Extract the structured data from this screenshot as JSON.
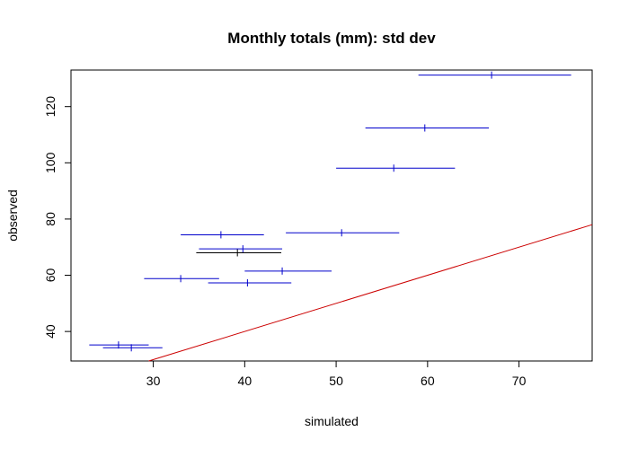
{
  "chart_data": {
    "type": "scatter",
    "title": "Monthly totals (mm): std dev",
    "xlabel": "simulated",
    "ylabel": "observed",
    "xlim": [
      21,
      78
    ],
    "ylim": [
      29.5,
      133
    ],
    "x_ticks": [
      30,
      40,
      50,
      60,
      70
    ],
    "y_ticks": [
      40,
      60,
      80,
      100,
      120
    ],
    "grid": false,
    "reference_line": {
      "slope": 1,
      "intercept": 0,
      "color": "#cc0000"
    },
    "series": [
      {
        "points": [
          {
            "x": 27.6,
            "y": 34.2,
            "xmin": 24.5,
            "xmax": 31.0
          },
          {
            "x": 26.2,
            "y": 35.2,
            "xmin": 23.0,
            "xmax": 29.5
          },
          {
            "x": 33.0,
            "y": 58.8,
            "xmin": 29.0,
            "xmax": 37.2
          },
          {
            "x": 40.3,
            "y": 57.3,
            "xmin": 36.0,
            "xmax": 45.1
          },
          {
            "x": 44.1,
            "y": 61.5,
            "xmin": 40.0,
            "xmax": 49.5
          },
          {
            "x": 39.2,
            "y": 68.0,
            "xmin": 34.7,
            "xmax": 44.0
          },
          {
            "x": 39.8,
            "y": 69.4,
            "xmin": 35.0,
            "xmax": 44.1
          },
          {
            "x": 37.4,
            "y": 74.4,
            "xmin": 33.0,
            "xmax": 42.1
          },
          {
            "x": 50.6,
            "y": 75.1,
            "xmin": 44.5,
            "xmax": 56.9
          },
          {
            "x": 56.3,
            "y": 98.1,
            "xmin": 50.0,
            "xmax": 63.0
          },
          {
            "x": 59.7,
            "y": 112.4,
            "xmin": 53.2,
            "xmax": 66.7
          },
          {
            "x": 67.0,
            "y": 131.2,
            "xmin": 59.0,
            "xmax": 75.7
          }
        ]
      }
    ],
    "colors": {
      "errorbar": "#0000cc",
      "errorbar_alt": "#000000",
      "reference": "#cc0000"
    }
  }
}
